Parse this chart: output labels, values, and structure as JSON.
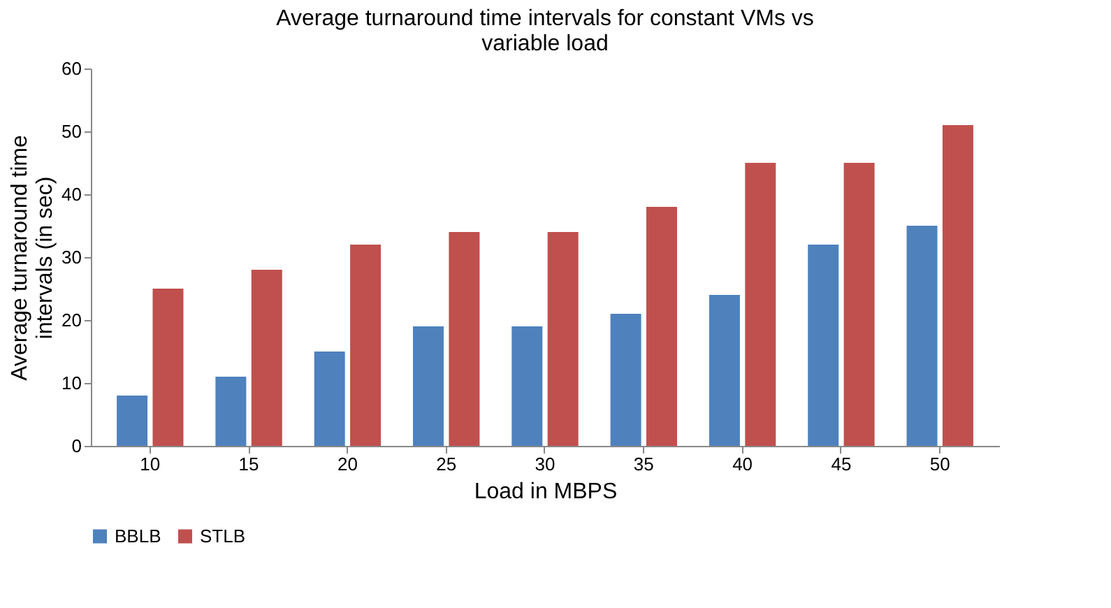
{
  "chart_data": {
    "type": "bar",
    "title": "Average turnaround time intervals for constant VMs vs variable load",
    "xlabel": "Load in MBPS",
    "ylabel": "Average turnaround time intervals (in sec)",
    "categories": [
      "10",
      "15",
      "20",
      "25",
      "30",
      "35",
      "40",
      "45",
      "50"
    ],
    "series": [
      {
        "name": "BBLB",
        "color": "#4f81bd",
        "values": [
          8,
          11,
          15,
          19,
          19,
          21,
          24,
          32,
          35
        ]
      },
      {
        "name": "STLB",
        "color": "#c0504d",
        "values": [
          25,
          28,
          32,
          34,
          34,
          38,
          45,
          45,
          51
        ]
      }
    ],
    "ylim": [
      0,
      60
    ],
    "yticks": [
      0,
      10,
      20,
      30,
      40,
      50,
      60
    ],
    "grid": false,
    "legend": "bottom"
  }
}
